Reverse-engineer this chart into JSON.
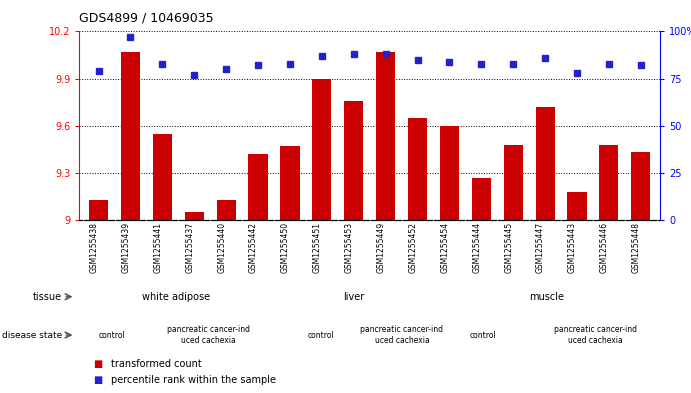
{
  "title": "GDS4899 / 10469035",
  "samples": [
    "GSM1255438",
    "GSM1255439",
    "GSM1255441",
    "GSM1255437",
    "GSM1255440",
    "GSM1255442",
    "GSM1255450",
    "GSM1255451",
    "GSM1255453",
    "GSM1255449",
    "GSM1255452",
    "GSM1255454",
    "GSM1255444",
    "GSM1255445",
    "GSM1255447",
    "GSM1255443",
    "GSM1255446",
    "GSM1255448"
  ],
  "transformed_count": [
    9.13,
    10.07,
    9.55,
    9.05,
    9.13,
    9.42,
    9.47,
    9.9,
    9.76,
    10.07,
    9.65,
    9.6,
    9.27,
    9.48,
    9.72,
    9.18,
    9.48,
    9.43
  ],
  "percentile_rank": [
    79,
    97,
    83,
    77,
    80,
    82,
    83,
    87,
    88,
    88,
    85,
    84,
    83,
    83,
    86,
    78,
    83,
    82
  ],
  "ylim_left": [
    9.0,
    10.2
  ],
  "ylim_right": [
    0,
    100
  ],
  "yticks_left": [
    9.0,
    9.3,
    9.6,
    9.9,
    10.2
  ],
  "ytick_labels_left": [
    "9",
    "9.3",
    "9.6",
    "9.9",
    "10.2"
  ],
  "yticks_right": [
    0,
    25,
    50,
    75,
    100
  ],
  "ytick_labels_right": [
    "0",
    "25",
    "50",
    "75",
    "100%"
  ],
  "bar_color": "#cc0000",
  "dot_color": "#2222cc",
  "sample_bg_color": "#cccccc",
  "tissue_groups": [
    {
      "label": "white adipose",
      "start": 0,
      "end": 6,
      "color": "#aaeaaa"
    },
    {
      "label": "liver",
      "start": 6,
      "end": 11,
      "color": "#66dd66"
    },
    {
      "label": "muscle",
      "start": 11,
      "end": 18,
      "color": "#44cc44"
    }
  ],
  "disease_groups": [
    {
      "label": "control",
      "start": 0,
      "end": 2,
      "color": "#ee88ee"
    },
    {
      "label": "pancreatic cancer-ind\nuced cachexia",
      "start": 2,
      "end": 6,
      "color": "#cc55cc"
    },
    {
      "label": "control",
      "start": 6,
      "end": 9,
      "color": "#ee88ee"
    },
    {
      "label": "pancreatic cancer-ind\nuced cachexia",
      "start": 9,
      "end": 11,
      "color": "#cc55cc"
    },
    {
      "label": "control",
      "start": 11,
      "end": 14,
      "color": "#ee88ee"
    },
    {
      "label": "pancreatic cancer-ind\nuced cachexia",
      "start": 14,
      "end": 18,
      "color": "#cc55cc"
    }
  ],
  "legend_items": [
    {
      "label": "transformed count",
      "color": "#cc0000"
    },
    {
      "label": "percentile rank within the sample",
      "color": "#2222cc"
    }
  ]
}
